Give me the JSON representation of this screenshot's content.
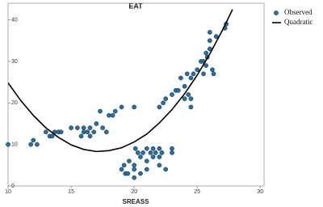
{
  "chart_data": {
    "type": "scatter",
    "title": "EAT",
    "x_label": "SREASS",
    "xlim": [
      10,
      30.3
    ],
    "ylim": [
      0,
      44
    ],
    "xticks": [
      10,
      15,
      20,
      25,
      30
    ],
    "yticks": [
      0,
      10,
      20,
      30,
      40
    ],
    "grid": false,
    "legend": "top-right",
    "series": [
      {
        "name": "Observed",
        "kind": "points",
        "color": "#2a6f9e",
        "x": [
          10,
          11.8,
          12,
          12.3,
          13,
          13.3,
          13.5,
          13.7,
          14,
          14.2,
          15,
          15.5,
          15.8,
          16,
          16,
          16.3,
          16.5,
          16.5,
          16.8,
          17,
          17.3,
          17.5,
          17.8,
          18,
          18.3,
          18.5,
          19,
          20,
          19,
          19.2,
          19.3,
          19.5,
          19.6,
          20,
          20,
          20,
          20.1,
          20.3,
          20.5,
          20.5,
          20.7,
          21,
          21,
          21,
          21.3,
          21.5,
          21.5,
          21.7,
          22,
          22,
          22,
          22.2,
          22.5,
          23,
          23,
          22,
          22.3,
          22.5,
          23,
          23.3,
          23.5,
          23.7,
          24,
          24,
          24.2,
          24.3,
          24.5,
          24.5,
          24.5,
          24.7,
          25,
          25.3,
          25.5,
          25.5,
          25.7,
          25.7,
          25.8,
          26,
          26,
          26,
          26.2,
          26.3,
          26.5,
          27.2,
          27.3
        ],
        "values": [
          10,
          10,
          11,
          10,
          13,
          12,
          12,
          13,
          13,
          13,
          14,
          14,
          12,
          14,
          13,
          13,
          12,
          14,
          13,
          15,
          18,
          14,
          13,
          17,
          17,
          18,
          19,
          19,
          4,
          5,
          3,
          3,
          6,
          2,
          4,
          5,
          9,
          8,
          7,
          3,
          8,
          9,
          6,
          4,
          8,
          9,
          7,
          8,
          9,
          7,
          5,
          8,
          4,
          9,
          8,
          19,
          20,
          21,
          22,
          23,
          23,
          26,
          24,
          21,
          27,
          22,
          26,
          19,
          21,
          27,
          28,
          30,
          30,
          27,
          32,
          29,
          31,
          33,
          35,
          37,
          28,
          27,
          36,
          38,
          39
        ]
      },
      {
        "name": "Quadratic",
        "kind": "line",
        "color": "#000000",
        "x": [
          10,
          11,
          12,
          13,
          14,
          15,
          16,
          17,
          18,
          19,
          20,
          21,
          22,
          23,
          24,
          25,
          26,
          27,
          27.8
        ],
        "values": [
          24.8,
          20.6,
          17.0,
          14.0,
          11.7,
          9.9,
          8.8,
          8.3,
          8.5,
          9.2,
          10.6,
          12.5,
          15.2,
          18.4,
          22.2,
          26.7,
          31.8,
          37.5,
          42.5
        ]
      }
    ]
  }
}
